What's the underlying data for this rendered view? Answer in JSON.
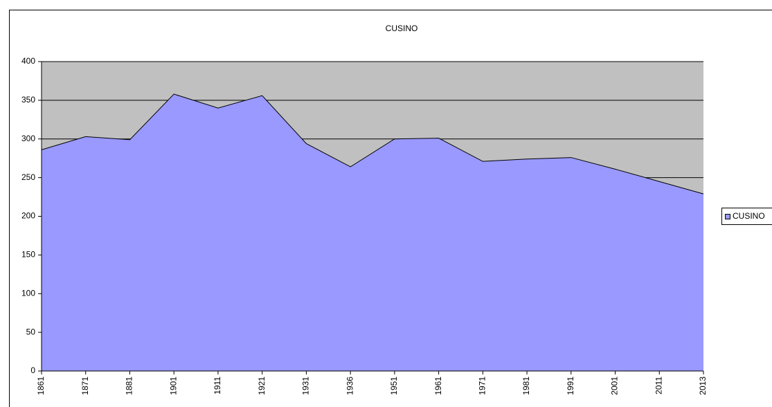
{
  "chart_data": {
    "type": "area",
    "title": "CUSINO",
    "categories": [
      "1861",
      "1871",
      "1881",
      "1901",
      "1911",
      "1921",
      "1931",
      "1936",
      "1951",
      "1961",
      "1971",
      "1981",
      "1991",
      "2001",
      "2011",
      "2013"
    ],
    "series": [
      {
        "name": "CUSINO",
        "color": "#9999ff",
        "values": [
          286,
          303,
          299,
          358,
          340,
          356,
          294,
          264,
          300,
          301,
          271,
          274,
          276,
          261,
          245,
          229
        ]
      }
    ],
    "ylim": [
      0,
      400
    ],
    "yticks": [
      0,
      50,
      100,
      150,
      200,
      250,
      300,
      350,
      400
    ],
    "grid": true,
    "legend": "right"
  }
}
